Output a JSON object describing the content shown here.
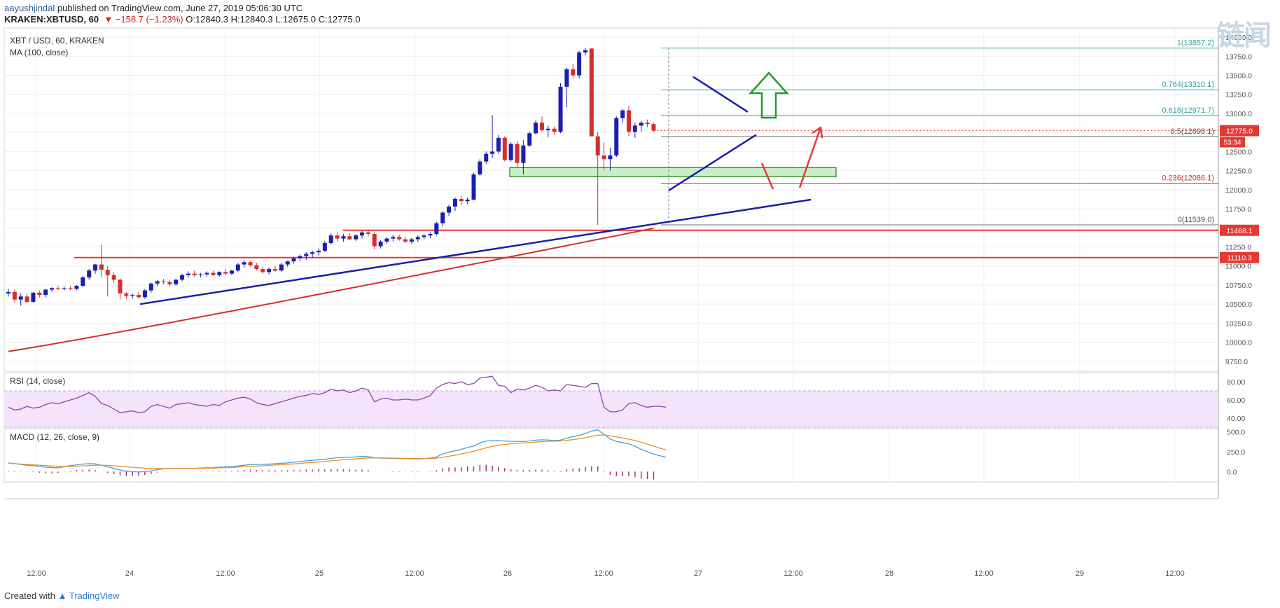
{
  "header": {
    "author": "aayushjindal",
    "published": " published on TradingView.com, June 27, 2019 05:06:30 UTC",
    "symbol": "KRAKEN:XBTUSD, 60",
    "change": "▼ −158.7 (−1.23%)",
    "ohlc": "O:12840.3 H:12840.3 L:12675.0 C:12775.0"
  },
  "watermark": "链闻",
  "footer": {
    "created_with": "Created with",
    "brand": "TradingView"
  },
  "colors": {
    "up": "#1a1fb0",
    "down": "#d32f2f",
    "ma": "#d32f2f",
    "trend": "#1a1fa8",
    "rsi": "#8e44ad",
    "macd": "#4a9fd8",
    "signal": "#e8922e"
  },
  "chart_data": [
    {
      "type": "candlestick",
      "title": "XBT / USD, 60, KRAKEN",
      "indicator_label": "MA (100, close)",
      "x_ticks": [
        "12:00",
        "24",
        "12:00",
        "25",
        "12:00",
        "26",
        "12:00",
        "27",
        "12:00",
        "28",
        "12:00",
        "29",
        "12:00"
      ],
      "y_ticks": [
        9750.0,
        10000.0,
        10250.0,
        10500.0,
        10750.0,
        11000.0,
        11250.0,
        11500.0,
        11750.0,
        12000.0,
        12250.0,
        12500.0,
        12750.0,
        13000.0,
        13250.0,
        13500.0,
        13750.0,
        14000.0
      ],
      "ylim": [
        9620,
        14120
      ],
      "current_price": "12775.0",
      "countdown": "53:34",
      "fibonacci": [
        {
          "label": "1(13857.2)",
          "value": 13857.2
        },
        {
          "label": "0.764(13310.1)",
          "value": 13310.1
        },
        {
          "label": "0.618(12971.7)",
          "value": 12971.7
        },
        {
          "label": "0.5(12698.1)",
          "value": 12698.1
        },
        {
          "label": "0.236(12086.1)",
          "value": 12086.1
        },
        {
          "label": "0(11539.0)",
          "value": 11539.0
        }
      ],
      "support_levels": [
        {
          "label": "11468.1",
          "value": 11468.1
        },
        {
          "label": "11110.3",
          "value": 11110.3
        }
      ],
      "support_zone": [
        12170,
        12290
      ],
      "candles": [
        {
          "o": 10640,
          "h": 10700,
          "l": 10600,
          "c": 10660
        },
        {
          "o": 10660,
          "h": 10690,
          "l": 10520,
          "c": 10560
        },
        {
          "o": 10560,
          "h": 10640,
          "l": 10480,
          "c": 10600
        },
        {
          "o": 10600,
          "h": 10640,
          "l": 10510,
          "c": 10530
        },
        {
          "o": 10530,
          "h": 10660,
          "l": 10520,
          "c": 10650
        },
        {
          "o": 10650,
          "h": 10680,
          "l": 10590,
          "c": 10620
        },
        {
          "o": 10620,
          "h": 10700,
          "l": 10590,
          "c": 10690
        },
        {
          "o": 10690,
          "h": 10720,
          "l": 10660,
          "c": 10710
        },
        {
          "o": 10710,
          "h": 10740,
          "l": 10680,
          "c": 10700
        },
        {
          "o": 10700,
          "h": 10730,
          "l": 10680,
          "c": 10710
        },
        {
          "o": 10710,
          "h": 10740,
          "l": 10680,
          "c": 10700
        },
        {
          "o": 10700,
          "h": 10750,
          "l": 10680,
          "c": 10740
        },
        {
          "o": 10740,
          "h": 10870,
          "l": 10720,
          "c": 10850
        },
        {
          "o": 10850,
          "h": 10960,
          "l": 10820,
          "c": 10940
        },
        {
          "o": 10940,
          "h": 11030,
          "l": 10900,
          "c": 11020
        },
        {
          "o": 11020,
          "h": 11280,
          "l": 10860,
          "c": 10950
        },
        {
          "o": 10950,
          "h": 11000,
          "l": 10600,
          "c": 10880
        },
        {
          "o": 10880,
          "h": 10920,
          "l": 10780,
          "c": 10820
        },
        {
          "o": 10820,
          "h": 10840,
          "l": 10560,
          "c": 10640
        },
        {
          "o": 10640,
          "h": 10660,
          "l": 10570,
          "c": 10610
        },
        {
          "o": 10610,
          "h": 10640,
          "l": 10570,
          "c": 10620
        },
        {
          "o": 10620,
          "h": 10660,
          "l": 10570,
          "c": 10590
        },
        {
          "o": 10590,
          "h": 10700,
          "l": 10570,
          "c": 10680
        },
        {
          "o": 10680,
          "h": 10780,
          "l": 10650,
          "c": 10770
        },
        {
          "o": 10770,
          "h": 10820,
          "l": 10740,
          "c": 10800
        },
        {
          "o": 10800,
          "h": 10830,
          "l": 10760,
          "c": 10790
        },
        {
          "o": 10790,
          "h": 10820,
          "l": 10740,
          "c": 10760
        },
        {
          "o": 10760,
          "h": 10830,
          "l": 10740,
          "c": 10820
        },
        {
          "o": 10820,
          "h": 10900,
          "l": 10800,
          "c": 10880
        },
        {
          "o": 10880,
          "h": 10930,
          "l": 10850,
          "c": 10900
        },
        {
          "o": 10900,
          "h": 10940,
          "l": 10860,
          "c": 10880
        },
        {
          "o": 10880,
          "h": 10910,
          "l": 10850,
          "c": 10890
        },
        {
          "o": 10890,
          "h": 10930,
          "l": 10860,
          "c": 10910
        },
        {
          "o": 10910,
          "h": 10940,
          "l": 10870,
          "c": 10880
        },
        {
          "o": 10880,
          "h": 10930,
          "l": 10860,
          "c": 10920
        },
        {
          "o": 10920,
          "h": 10960,
          "l": 10880,
          "c": 10900
        },
        {
          "o": 10900,
          "h": 10950,
          "l": 10880,
          "c": 10940
        },
        {
          "o": 10940,
          "h": 11040,
          "l": 10920,
          "c": 11020
        },
        {
          "o": 11020,
          "h": 11080,
          "l": 10980,
          "c": 11050
        },
        {
          "o": 11050,
          "h": 11070,
          "l": 10990,
          "c": 11010
        },
        {
          "o": 11010,
          "h": 11040,
          "l": 10940,
          "c": 10960
        },
        {
          "o": 10960,
          "h": 10990,
          "l": 10900,
          "c": 10920
        },
        {
          "o": 10920,
          "h": 10980,
          "l": 10890,
          "c": 10960
        },
        {
          "o": 10960,
          "h": 11000,
          "l": 10920,
          "c": 10940
        },
        {
          "o": 10940,
          "h": 11040,
          "l": 10920,
          "c": 11020
        },
        {
          "o": 11020,
          "h": 11070,
          "l": 10990,
          "c": 11060
        },
        {
          "o": 11060,
          "h": 11120,
          "l": 11030,
          "c": 11100
        },
        {
          "o": 11100,
          "h": 11150,
          "l": 11060,
          "c": 11130
        },
        {
          "o": 11130,
          "h": 11180,
          "l": 11080,
          "c": 11160
        },
        {
          "o": 11160,
          "h": 11200,
          "l": 11110,
          "c": 11180
        },
        {
          "o": 11180,
          "h": 11230,
          "l": 11140,
          "c": 11200
        },
        {
          "o": 11200,
          "h": 11330,
          "l": 11180,
          "c": 11300
        },
        {
          "o": 11300,
          "h": 11430,
          "l": 11280,
          "c": 11400
        },
        {
          "o": 11400,
          "h": 11440,
          "l": 11320,
          "c": 11360
        },
        {
          "o": 11360,
          "h": 11420,
          "l": 11320,
          "c": 11390
        },
        {
          "o": 11390,
          "h": 11430,
          "l": 11340,
          "c": 11350
        },
        {
          "o": 11350,
          "h": 11420,
          "l": 11330,
          "c": 11400
        },
        {
          "o": 11400,
          "h": 11460,
          "l": 11360,
          "c": 11440
        },
        {
          "o": 11440,
          "h": 11480,
          "l": 11390,
          "c": 11420
        },
        {
          "o": 11420,
          "h": 11440,
          "l": 11220,
          "c": 11260
        },
        {
          "o": 11260,
          "h": 11340,
          "l": 11230,
          "c": 11320
        },
        {
          "o": 11320,
          "h": 11380,
          "l": 11290,
          "c": 11360
        },
        {
          "o": 11360,
          "h": 11410,
          "l": 11320,
          "c": 11380
        },
        {
          "o": 11380,
          "h": 11410,
          "l": 11330,
          "c": 11350
        },
        {
          "o": 11350,
          "h": 11380,
          "l": 11300,
          "c": 11320
        },
        {
          "o": 11320,
          "h": 11370,
          "l": 11290,
          "c": 11350
        },
        {
          "o": 11350,
          "h": 11400,
          "l": 11320,
          "c": 11380
        },
        {
          "o": 11380,
          "h": 11420,
          "l": 11350,
          "c": 11400
        },
        {
          "o": 11400,
          "h": 11440,
          "l": 11370,
          "c": 11420
        },
        {
          "o": 11420,
          "h": 11580,
          "l": 11400,
          "c": 11560
        },
        {
          "o": 11560,
          "h": 11720,
          "l": 11520,
          "c": 11700
        },
        {
          "o": 11700,
          "h": 11800,
          "l": 11660,
          "c": 11780
        },
        {
          "o": 11780,
          "h": 11900,
          "l": 11720,
          "c": 11880
        },
        {
          "o": 11880,
          "h": 11920,
          "l": 11800,
          "c": 11850
        },
        {
          "o": 11850,
          "h": 11900,
          "l": 11810,
          "c": 11870
        },
        {
          "o": 11870,
          "h": 12220,
          "l": 11860,
          "c": 12200
        },
        {
          "o": 12200,
          "h": 12400,
          "l": 12180,
          "c": 12370
        },
        {
          "o": 12370,
          "h": 12500,
          "l": 12340,
          "c": 12470
        },
        {
          "o": 12470,
          "h": 12980,
          "l": 12420,
          "c": 12500
        },
        {
          "o": 12500,
          "h": 12720,
          "l": 12470,
          "c": 12680
        },
        {
          "o": 12680,
          "h": 12700,
          "l": 12370,
          "c": 12390
        },
        {
          "o": 12390,
          "h": 12620,
          "l": 12370,
          "c": 12600
        },
        {
          "o": 12600,
          "h": 12640,
          "l": 12300,
          "c": 12350
        },
        {
          "o": 12350,
          "h": 12650,
          "l": 12200,
          "c": 12580
        },
        {
          "o": 12580,
          "h": 12760,
          "l": 12560,
          "c": 12740
        },
        {
          "o": 12740,
          "h": 12910,
          "l": 12720,
          "c": 12880
        },
        {
          "o": 12880,
          "h": 12960,
          "l": 12760,
          "c": 12780
        },
        {
          "o": 12780,
          "h": 12840,
          "l": 12690,
          "c": 12800
        },
        {
          "o": 12800,
          "h": 12830,
          "l": 12720,
          "c": 12760
        },
        {
          "o": 12760,
          "h": 13400,
          "l": 12740,
          "c": 13350
        },
        {
          "o": 13350,
          "h": 13600,
          "l": 13080,
          "c": 13580
        },
        {
          "o": 13580,
          "h": 13650,
          "l": 13460,
          "c": 13500
        },
        {
          "o": 13500,
          "h": 13820,
          "l": 13460,
          "c": 13800
        },
        {
          "o": 13800,
          "h": 13857,
          "l": 13760,
          "c": 13830
        },
        {
          "o": 13850,
          "h": 13857,
          "l": 12700,
          "c": 12700
        },
        {
          "o": 12700,
          "h": 12760,
          "l": 11539,
          "c": 12450
        },
        {
          "o": 12450,
          "h": 12620,
          "l": 12260,
          "c": 12400
        },
        {
          "o": 12400,
          "h": 12550,
          "l": 12250,
          "c": 12450
        },
        {
          "o": 12450,
          "h": 12960,
          "l": 12430,
          "c": 12940
        },
        {
          "o": 12940,
          "h": 13060,
          "l": 12880,
          "c": 13040
        },
        {
          "o": 13040,
          "h": 13100,
          "l": 12700,
          "c": 12760
        },
        {
          "o": 12760,
          "h": 12880,
          "l": 12680,
          "c": 12840
        },
        {
          "o": 12840,
          "h": 12900,
          "l": 12760,
          "c": 12880
        },
        {
          "o": 12880,
          "h": 12920,
          "l": 12820,
          "c": 12860
        },
        {
          "o": 12860,
          "h": 12880,
          "l": 12760,
          "c": 12775
        }
      ]
    },
    {
      "type": "line",
      "title": "RSI (14, close)",
      "y_ticks": [
        40.0,
        60.0,
        80.0
      ],
      "ylim": [
        30,
        90
      ],
      "values": [
        52,
        49,
        50,
        53,
        51,
        52,
        55,
        57,
        56,
        58,
        60,
        62,
        65,
        68,
        64,
        56,
        54,
        50,
        46,
        47,
        48,
        46,
        47,
        53,
        55,
        53,
        51,
        55,
        56,
        57,
        55,
        54,
        53,
        55,
        54,
        58,
        60,
        62,
        63,
        61,
        57,
        55,
        54,
        56,
        58,
        60,
        62,
        64,
        65,
        67,
        66,
        68,
        72,
        70,
        71,
        68,
        70,
        73,
        71,
        58,
        61,
        62,
        60,
        60,
        61,
        60,
        60,
        62,
        65,
        73,
        77,
        79,
        78,
        80,
        77,
        78,
        84,
        85,
        86,
        76,
        75,
        68,
        72,
        71,
        73,
        76,
        74,
        70,
        71,
        70,
        77,
        76,
        75,
        74,
        78,
        78,
        52,
        47,
        47,
        49,
        56,
        57,
        54,
        52,
        53,
        53,
        52
      ]
    },
    {
      "type": "line",
      "title": "MACD (12, 26, close, 9)",
      "y_ticks": [
        0.0,
        250.0,
        500.0
      ],
      "ylim": [
        -130,
        540
      ],
      "macd": [
        110,
        100,
        90,
        80,
        75,
        65,
        55,
        50,
        48,
        60,
        75,
        85,
        95,
        100,
        98,
        80,
        60,
        40,
        20,
        5,
        0,
        -5,
        0,
        10,
        25,
        35,
        40,
        40,
        38,
        40,
        42,
        45,
        48,
        50,
        55,
        60,
        62,
        70,
        80,
        88,
        90,
        92,
        95,
        100,
        105,
        110,
        118,
        125,
        135,
        140,
        150,
        155,
        165,
        175,
        180,
        182,
        185,
        190,
        188,
        175,
        170,
        168,
        165,
        163,
        162,
        160,
        158,
        162,
        170,
        185,
        220,
        245,
        260,
        280,
        305,
        320,
        360,
        385,
        390,
        388,
        385,
        380,
        380,
        378,
        385,
        395,
        400,
        398,
        390,
        395,
        420,
        440,
        455,
        480,
        510,
        525,
        470,
        410,
        380,
        365,
        350,
        320,
        280,
        250,
        220,
        200,
        180
      ],
      "signal": [
        105,
        100,
        95,
        90,
        85,
        80,
        75,
        70,
        66,
        64,
        65,
        68,
        72,
        76,
        80,
        80,
        78,
        73,
        67,
        60,
        54,
        48,
        43,
        40,
        38,
        38,
        38,
        39,
        39,
        39,
        40,
        41,
        42,
        44,
        46,
        49,
        52,
        56,
        60,
        65,
        70,
        74,
        79,
        83,
        88,
        92,
        97,
        103,
        109,
        115,
        121,
        128,
        135,
        142,
        149,
        155,
        161,
        167,
        171,
        172,
        172,
        171,
        170,
        168,
        166,
        165,
        163,
        163,
        164,
        168,
        179,
        193,
        207,
        223,
        240,
        256,
        277,
        299,
        317,
        331,
        342,
        350,
        356,
        360,
        365,
        371,
        377,
        381,
        383,
        386,
        393,
        402,
        413,
        426,
        443,
        459,
        461,
        451,
        437,
        423,
        409,
        391,
        369,
        345,
        320,
        296,
        273
      ],
      "histogram": [
        10,
        8,
        5,
        -3,
        -8,
        -14,
        -20,
        -22,
        -18,
        -4,
        10,
        17,
        23,
        24,
        18,
        0,
        -18,
        -33,
        -47,
        -55,
        -54,
        -53,
        -43,
        -30,
        -13,
        -3,
        2,
        1,
        -1,
        1,
        2,
        4,
        6,
        6,
        9,
        11,
        10,
        14,
        20,
        23,
        20,
        18,
        16,
        17,
        17,
        18,
        21,
        22,
        26,
        25,
        29,
        27,
        30,
        33,
        31,
        27,
        24,
        23,
        17,
        3,
        -2,
        -3,
        -5,
        -5,
        -4,
        -5,
        -5,
        -1,
        6,
        17,
        41,
        52,
        53,
        57,
        65,
        64,
        83,
        86,
        73,
        57,
        43,
        30,
        24,
        18,
        20,
        24,
        23,
        17,
        7,
        9,
        27,
        38,
        42,
        54,
        67,
        66,
        9,
        -41,
        -57,
        -58,
        -59,
        -71,
        -89,
        -95,
        -100,
        -96,
        -93
      ]
    }
  ]
}
